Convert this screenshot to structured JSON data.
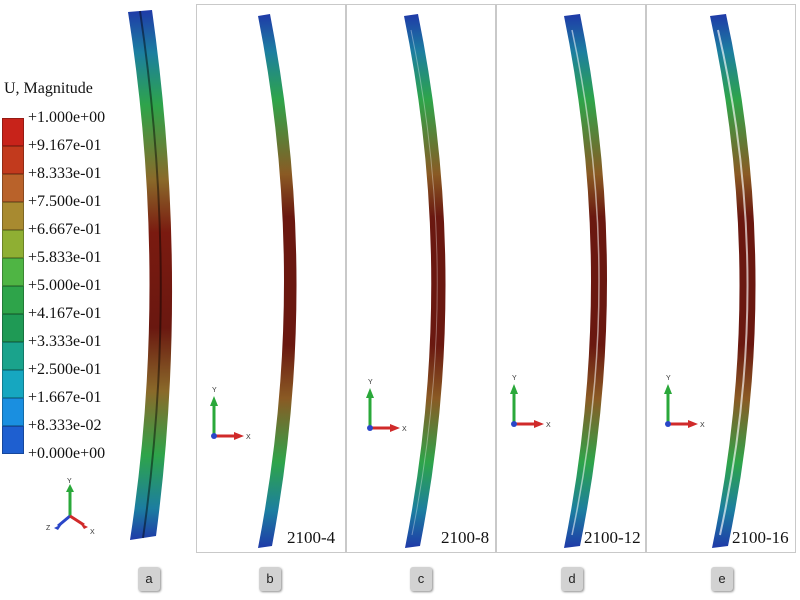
{
  "legend": {
    "title": "U, Magnitude",
    "levels": [
      {
        "label": "+1.000e+00",
        "color": "#c8231a"
      },
      {
        "label": "+9.167e-01",
        "color": "#c23a1d"
      },
      {
        "label": "+8.333e-01",
        "color": "#b9622a"
      },
      {
        "label": "+7.500e-01",
        "color": "#a88a30"
      },
      {
        "label": "+6.667e-01",
        "color": "#8faf33"
      },
      {
        "label": "+5.833e-01",
        "color": "#4fb544"
      },
      {
        "label": "+5.000e-01",
        "color": "#2ea44a"
      },
      {
        "label": "+4.167e-01",
        "color": "#1f9a55"
      },
      {
        "label": "+3.333e-01",
        "color": "#1aa38c"
      },
      {
        "label": "+2.500e-01",
        "color": "#16a7c0"
      },
      {
        "label": "+1.667e-01",
        "color": "#1a8fe0"
      },
      {
        "label": "+8.333e-02",
        "color": "#1e5fd0"
      },
      {
        "label": "+0.000e+00",
        "color": "#1f3aa8"
      }
    ],
    "axes": {
      "y": "Y",
      "z": "Z",
      "x": "X"
    }
  },
  "triad_labels": {
    "y": "Y",
    "x": "X"
  },
  "panels": [
    {
      "id": "a",
      "case_label": ""
    },
    {
      "id": "b",
      "case_label": "2100-4"
    },
    {
      "id": "c",
      "case_label": "2100-8"
    },
    {
      "id": "d",
      "case_label": "2100-12"
    },
    {
      "id": "e",
      "case_label": "2100-16"
    }
  ],
  "sub_labels": [
    "a",
    "b",
    "c",
    "d",
    "e"
  ],
  "colors": {
    "beam_low": "#1f3aa8",
    "beam_mid": "#2ea44a",
    "beam_high": "#7a1a10",
    "panel_border": "#c9c9c9"
  }
}
